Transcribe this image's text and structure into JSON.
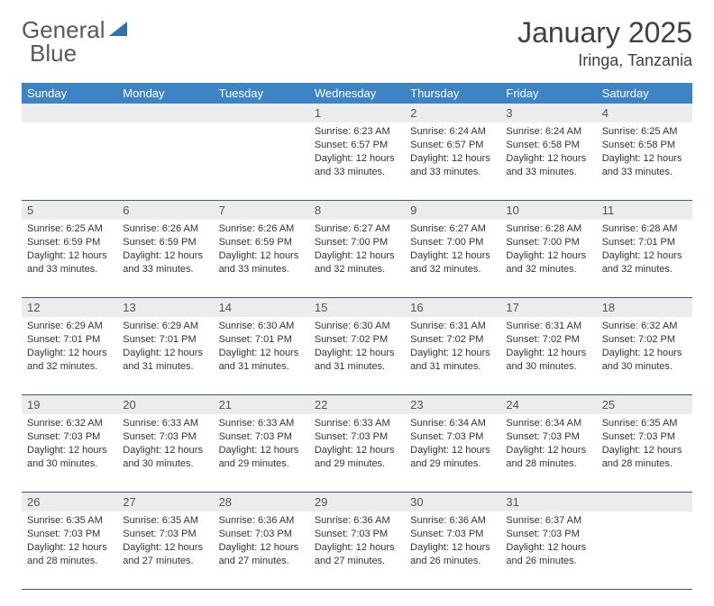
{
  "logo": {
    "text1": "General",
    "text2": "Blue",
    "accent_color": "#2f6fb3"
  },
  "title": "January 2025",
  "location": "Iringa, Tanzania",
  "colors": {
    "header_bg": "#3d84c6",
    "header_text": "#ffffff",
    "daynum_bg": "#ececec",
    "rule": "#2f5d8a",
    "body_text": "#333333"
  },
  "weekdays": [
    "Sunday",
    "Monday",
    "Tuesday",
    "Wednesday",
    "Thursday",
    "Friday",
    "Saturday"
  ],
  "weeks": [
    [
      null,
      null,
      null,
      {
        "n": "1",
        "sr": "6:23 AM",
        "ss": "6:57 PM",
        "dl": "12 hours and 33 minutes."
      },
      {
        "n": "2",
        "sr": "6:24 AM",
        "ss": "6:57 PM",
        "dl": "12 hours and 33 minutes."
      },
      {
        "n": "3",
        "sr": "6:24 AM",
        "ss": "6:58 PM",
        "dl": "12 hours and 33 minutes."
      },
      {
        "n": "4",
        "sr": "6:25 AM",
        "ss": "6:58 PM",
        "dl": "12 hours and 33 minutes."
      }
    ],
    [
      {
        "n": "5",
        "sr": "6:25 AM",
        "ss": "6:59 PM",
        "dl": "12 hours and 33 minutes."
      },
      {
        "n": "6",
        "sr": "6:26 AM",
        "ss": "6:59 PM",
        "dl": "12 hours and 33 minutes."
      },
      {
        "n": "7",
        "sr": "6:26 AM",
        "ss": "6:59 PM",
        "dl": "12 hours and 33 minutes."
      },
      {
        "n": "8",
        "sr": "6:27 AM",
        "ss": "7:00 PM",
        "dl": "12 hours and 32 minutes."
      },
      {
        "n": "9",
        "sr": "6:27 AM",
        "ss": "7:00 PM",
        "dl": "12 hours and 32 minutes."
      },
      {
        "n": "10",
        "sr": "6:28 AM",
        "ss": "7:00 PM",
        "dl": "12 hours and 32 minutes."
      },
      {
        "n": "11",
        "sr": "6:28 AM",
        "ss": "7:01 PM",
        "dl": "12 hours and 32 minutes."
      }
    ],
    [
      {
        "n": "12",
        "sr": "6:29 AM",
        "ss": "7:01 PM",
        "dl": "12 hours and 32 minutes."
      },
      {
        "n": "13",
        "sr": "6:29 AM",
        "ss": "7:01 PM",
        "dl": "12 hours and 31 minutes."
      },
      {
        "n": "14",
        "sr": "6:30 AM",
        "ss": "7:01 PM",
        "dl": "12 hours and 31 minutes."
      },
      {
        "n": "15",
        "sr": "6:30 AM",
        "ss": "7:02 PM",
        "dl": "12 hours and 31 minutes."
      },
      {
        "n": "16",
        "sr": "6:31 AM",
        "ss": "7:02 PM",
        "dl": "12 hours and 31 minutes."
      },
      {
        "n": "17",
        "sr": "6:31 AM",
        "ss": "7:02 PM",
        "dl": "12 hours and 30 minutes."
      },
      {
        "n": "18",
        "sr": "6:32 AM",
        "ss": "7:02 PM",
        "dl": "12 hours and 30 minutes."
      }
    ],
    [
      {
        "n": "19",
        "sr": "6:32 AM",
        "ss": "7:03 PM",
        "dl": "12 hours and 30 minutes."
      },
      {
        "n": "20",
        "sr": "6:33 AM",
        "ss": "7:03 PM",
        "dl": "12 hours and 30 minutes."
      },
      {
        "n": "21",
        "sr": "6:33 AM",
        "ss": "7:03 PM",
        "dl": "12 hours and 29 minutes."
      },
      {
        "n": "22",
        "sr": "6:33 AM",
        "ss": "7:03 PM",
        "dl": "12 hours and 29 minutes."
      },
      {
        "n": "23",
        "sr": "6:34 AM",
        "ss": "7:03 PM",
        "dl": "12 hours and 29 minutes."
      },
      {
        "n": "24",
        "sr": "6:34 AM",
        "ss": "7:03 PM",
        "dl": "12 hours and 28 minutes."
      },
      {
        "n": "25",
        "sr": "6:35 AM",
        "ss": "7:03 PM",
        "dl": "12 hours and 28 minutes."
      }
    ],
    [
      {
        "n": "26",
        "sr": "6:35 AM",
        "ss": "7:03 PM",
        "dl": "12 hours and 28 minutes."
      },
      {
        "n": "27",
        "sr": "6:35 AM",
        "ss": "7:03 PM",
        "dl": "12 hours and 27 minutes."
      },
      {
        "n": "28",
        "sr": "6:36 AM",
        "ss": "7:03 PM",
        "dl": "12 hours and 27 minutes."
      },
      {
        "n": "29",
        "sr": "6:36 AM",
        "ss": "7:03 PM",
        "dl": "12 hours and 27 minutes."
      },
      {
        "n": "30",
        "sr": "6:36 AM",
        "ss": "7:03 PM",
        "dl": "12 hours and 26 minutes."
      },
      {
        "n": "31",
        "sr": "6:37 AM",
        "ss": "7:03 PM",
        "dl": "12 hours and 26 minutes."
      },
      null
    ]
  ],
  "labels": {
    "sunrise": "Sunrise:",
    "sunset": "Sunset:",
    "daylight": "Daylight:"
  }
}
